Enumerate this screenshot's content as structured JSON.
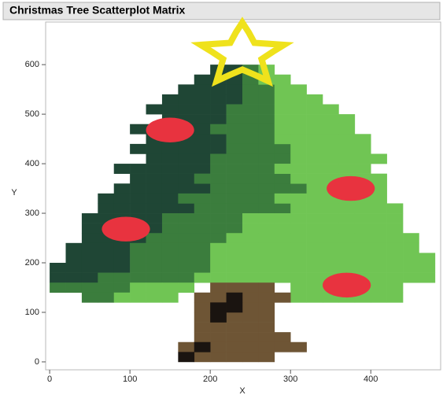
{
  "chart_data": {
    "type": "scatter",
    "title": "Christmas Tree Scatterplot Matrix",
    "x_label": "X",
    "y_label": "Y",
    "xlim": [
      -5,
      487
    ],
    "ylim": [
      -16,
      686
    ],
    "xticks": [
      0,
      100,
      200,
      300,
      400
    ],
    "yticks": [
      0,
      100,
      200,
      300,
      400,
      500,
      600
    ],
    "series": [
      {
        "color": "#1f4635",
        "marker": "square",
        "x": [
          210,
          230,
          190,
          210,
          230,
          170,
          190,
          210,
          230,
          150,
          170,
          190,
          210,
          230,
          130,
          150,
          170,
          190,
          210,
          150,
          170,
          190,
          210,
          110,
          130,
          150,
          170,
          190,
          130,
          150,
          170,
          190,
          210,
          110,
          130,
          150,
          170,
          190,
          210,
          130,
          150,
          170,
          190,
          90,
          110,
          130,
          150,
          170,
          190,
          110,
          130,
          150,
          170,
          90,
          110,
          130,
          150,
          170,
          190,
          70,
          90,
          110,
          130,
          150,
          70,
          90,
          110,
          130,
          150,
          170,
          50,
          70,
          90,
          110,
          130,
          50,
          70,
          90,
          110,
          130,
          50,
          70,
          90,
          110,
          30,
          50,
          70,
          90,
          30,
          50,
          70,
          90,
          10,
          30,
          50,
          70,
          90,
          10,
          30,
          50
        ],
        "y": [
          590,
          590,
          570,
          570,
          570,
          550,
          550,
          550,
          550,
          530,
          530,
          530,
          530,
          530,
          510,
          510,
          510,
          510,
          510,
          490,
          490,
          490,
          490,
          470,
          470,
          470,
          470,
          470,
          450,
          450,
          450,
          450,
          450,
          430,
          430,
          430,
          430,
          430,
          430,
          410,
          410,
          410,
          410,
          390,
          390,
          390,
          390,
          390,
          390,
          370,
          370,
          370,
          370,
          350,
          350,
          350,
          350,
          350,
          350,
          330,
          330,
          330,
          330,
          330,
          310,
          310,
          310,
          310,
          310,
          310,
          290,
          290,
          290,
          290,
          290,
          270,
          270,
          270,
          270,
          270,
          250,
          250,
          250,
          250,
          230,
          230,
          230,
          230,
          210,
          210,
          210,
          210,
          190,
          190,
          190,
          190,
          190,
          170,
          170,
          170
        ]
      },
      {
        "color": "#3b7d3d",
        "marker": "square",
        "x": [
          250,
          250,
          250,
          270,
          250,
          270,
          230,
          250,
          270,
          230,
          250,
          270,
          210,
          230,
          250,
          270,
          230,
          250,
          270,
          230,
          250,
          270,
          290,
          210,
          230,
          250,
          270,
          290,
          210,
          230,
          250,
          270,
          190,
          210,
          230,
          250,
          270,
          290,
          210,
          230,
          250,
          270,
          290,
          310,
          170,
          190,
          210,
          230,
          250,
          270,
          190,
          210,
          230,
          250,
          270,
          290,
          150,
          170,
          190,
          210,
          230,
          150,
          170,
          190,
          210,
          230,
          130,
          150,
          170,
          190,
          210,
          110,
          130,
          150,
          170,
          190,
          110,
          130,
          150,
          170,
          190,
          110,
          130,
          150,
          170,
          190,
          70,
          90,
          110,
          130,
          150,
          170,
          10,
          30,
          50,
          70,
          90,
          50,
          70
        ],
        "y": [
          590,
          570,
          550,
          550,
          530,
          530,
          510,
          510,
          510,
          490,
          490,
          490,
          470,
          470,
          470,
          470,
          450,
          450,
          450,
          430,
          430,
          430,
          430,
          410,
          410,
          410,
          410,
          410,
          390,
          390,
          390,
          390,
          370,
          370,
          370,
          370,
          370,
          370,
          350,
          350,
          350,
          350,
          350,
          350,
          330,
          330,
          330,
          330,
          330,
          330,
          310,
          310,
          310,
          310,
          310,
          310,
          290,
          290,
          290,
          290,
          290,
          270,
          270,
          270,
          270,
          270,
          250,
          250,
          250,
          250,
          250,
          230,
          230,
          230,
          230,
          230,
          210,
          210,
          210,
          210,
          210,
          190,
          190,
          190,
          190,
          190,
          170,
          170,
          170,
          170,
          170,
          170,
          150,
          150,
          150,
          150,
          150,
          130,
          130
        ]
      },
      {
        "color": "#70c554",
        "marker": "square",
        "x": [
          270,
          270,
          290,
          290,
          310,
          290,
          310,
          330,
          290,
          310,
          330,
          350,
          290,
          310,
          330,
          350,
          370,
          290,
          310,
          330,
          350,
          370,
          290,
          310,
          330,
          350,
          370,
          390,
          310,
          330,
          350,
          370,
          390,
          310,
          330,
          350,
          370,
          390,
          410,
          290,
          310,
          330,
          350,
          370,
          390,
          310,
          330,
          350,
          370,
          390,
          410,
          330,
          350,
          370,
          390,
          410,
          290,
          310,
          330,
          350,
          370,
          390,
          410,
          310,
          330,
          350,
          370,
          390,
          410,
          430,
          250,
          270,
          290,
          310,
          330,
          350,
          370,
          390,
          410,
          430,
          250,
          270,
          290,
          310,
          330,
          350,
          370,
          390,
          410,
          430,
          230,
          250,
          270,
          290,
          310,
          330,
          350,
          370,
          390,
          410,
          430,
          450,
          210,
          230,
          250,
          270,
          290,
          310,
          330,
          350,
          370,
          390,
          410,
          430,
          450,
          210,
          230,
          250,
          270,
          290,
          310,
          330,
          350,
          370,
          390,
          410,
          430,
          450,
          470,
          210,
          230,
          250,
          270,
          290,
          310,
          330,
          350,
          370,
          390,
          410,
          430,
          450,
          470,
          190,
          210,
          230,
          250,
          270,
          290,
          310,
          330,
          350,
          370,
          390,
          410,
          430,
          450,
          470,
          110,
          130,
          150,
          170,
          310,
          330,
          350,
          370,
          390,
          410,
          430,
          90,
          110,
          130,
          150,
          310,
          330,
          350,
          370,
          390,
          410,
          430
        ],
        "y": [
          590,
          570,
          570,
          550,
          550,
          530,
          530,
          530,
          510,
          510,
          510,
          510,
          490,
          490,
          490,
          490,
          490,
          470,
          470,
          470,
          470,
          470,
          450,
          450,
          450,
          450,
          450,
          450,
          430,
          430,
          430,
          430,
          430,
          410,
          410,
          410,
          410,
          410,
          410,
          390,
          390,
          390,
          390,
          390,
          390,
          370,
          370,
          370,
          370,
          370,
          370,
          350,
          350,
          350,
          350,
          350,
          330,
          330,
          330,
          330,
          330,
          330,
          330,
          310,
          310,
          310,
          310,
          310,
          310,
          310,
          290,
          290,
          290,
          290,
          290,
          290,
          290,
          290,
          290,
          290,
          270,
          270,
          270,
          270,
          270,
          270,
          270,
          270,
          270,
          270,
          250,
          250,
          250,
          250,
          250,
          250,
          250,
          250,
          250,
          250,
          250,
          250,
          230,
          230,
          230,
          230,
          230,
          230,
          230,
          230,
          230,
          230,
          230,
          230,
          230,
          210,
          210,
          210,
          210,
          210,
          210,
          210,
          210,
          210,
          210,
          210,
          210,
          210,
          210,
          190,
          190,
          190,
          190,
          190,
          190,
          190,
          190,
          190,
          190,
          190,
          190,
          190,
          190,
          170,
          170,
          170,
          170,
          170,
          170,
          170,
          170,
          170,
          170,
          170,
          170,
          170,
          170,
          170,
          150,
          150,
          150,
          150,
          150,
          150,
          150,
          150,
          150,
          150,
          150,
          130,
          130,
          130,
          130,
          130,
          130,
          130,
          130,
          130,
          130,
          130
        ]
      },
      {
        "color": "#6e5535",
        "marker": "square",
        "x": [
          210,
          230,
          250,
          270,
          190,
          210,
          230,
          250,
          270,
          290,
          190,
          210,
          230,
          250,
          270,
          190,
          210,
          230,
          250,
          270,
          190,
          210,
          230,
          250,
          270,
          190,
          210,
          230,
          250,
          270,
          290,
          170,
          190,
          210,
          230,
          250,
          270,
          290,
          310,
          190,
          210,
          230,
          250,
          270
        ],
        "y": [
          150,
          150,
          150,
          150,
          130,
          130,
          130,
          130,
          130,
          130,
          110,
          110,
          110,
          110,
          110,
          90,
          90,
          90,
          90,
          90,
          70,
          70,
          70,
          70,
          70,
          50,
          50,
          50,
          50,
          50,
          50,
          30,
          30,
          30,
          30,
          30,
          30,
          30,
          30,
          10,
          10,
          10,
          10,
          10
        ]
      },
      {
        "color": "#1a1410",
        "marker": "square",
        "x": [
          210,
          230,
          230,
          210,
          190,
          170
        ],
        "y": [
          110,
          110,
          130,
          90,
          30,
          10
        ]
      },
      {
        "color": "#efe21c",
        "marker": "outline",
        "x": [
          240,
          248,
          255,
          274,
          292,
          278,
          264,
          268,
          272,
          256,
          240,
          224,
          208,
          212,
          216,
          202,
          188,
          206,
          225,
          232
        ],
        "y": [
          685,
          665,
          644,
          642,
          640,
          626,
          611,
          589,
          567,
          579,
          590,
          579,
          567,
          589,
          611,
          626,
          640,
          642,
          644,
          665
        ]
      },
      {
        "color": "#e8333f",
        "marker": "ellipse",
        "x": [
          150,
          95,
          375,
          370
        ],
        "y": [
          468,
          268,
          350,
          155
        ]
      }
    ]
  }
}
